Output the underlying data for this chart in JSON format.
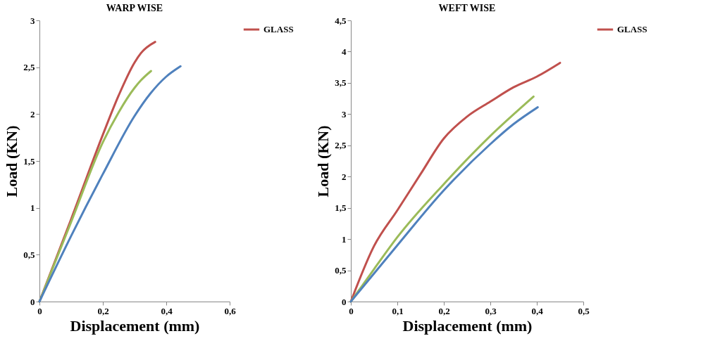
{
  "chart_data": [
    {
      "type": "line",
      "title": "WARP WISE",
      "xlabel": "Displacement (mm)",
      "ylabel": "Load (KN)",
      "legend": "right",
      "grid": false,
      "line_style": "solid",
      "marker": "none",
      "xlim": [
        0,
        0.6
      ],
      "xticks": [
        0,
        {
          "value": 0.2,
          "label": "0,2"
        },
        {
          "value": 0.4,
          "label": "0,4"
        },
        {
          "value": 0.6,
          "label": "0,6"
        }
      ],
      "ylim": [
        0,
        3
      ],
      "yticks": [
        0,
        {
          "value": 0.5,
          "label": "0,5"
        },
        1,
        {
          "value": 1.5,
          "label": "1,5"
        },
        2,
        {
          "value": 2.5,
          "label": "2,5"
        },
        3
      ],
      "series": [
        {
          "name": "GLASS",
          "color": "#c0504d",
          "x": [
            0,
            0.1,
            0.2,
            0.25,
            0.3,
            0.32,
            0.365
          ],
          "values": [
            0,
            0.88,
            1.78,
            2.2,
            2.55,
            2.65,
            2.77
          ]
        },
        {
          "color": "#9bbb59",
          "x": [
            0,
            0.1,
            0.2,
            0.25,
            0.3,
            0.32,
            0.352
          ],
          "values": [
            0,
            0.85,
            1.7,
            2.02,
            2.28,
            2.36,
            2.46
          ]
        },
        {
          "color": "#4f81bd",
          "x": [
            0,
            0.1,
            0.2,
            0.3,
            0.35,
            0.4,
            0.445
          ],
          "values": [
            0,
            0.7,
            1.36,
            1.98,
            2.22,
            2.4,
            2.51
          ]
        }
      ]
    },
    {
      "type": "line",
      "title": "WEFT WISE",
      "xlabel": "Displacement  (mm)",
      "ylabel": "Load (KN)",
      "legend": "right",
      "grid": false,
      "line_style": "solid",
      "marker": "none",
      "xlim": [
        0,
        0.5
      ],
      "xticks": [
        0,
        {
          "value": 0.1,
          "label": "0,1"
        },
        {
          "value": 0.2,
          "label": "0,2"
        },
        {
          "value": 0.3,
          "label": "0,3"
        },
        {
          "value": 0.4,
          "label": "0,4"
        },
        {
          "value": 0.5,
          "label": "0,5"
        }
      ],
      "ylim": [
        0,
        4.5
      ],
      "yticks": [
        0,
        {
          "value": 0.5,
          "label": "0,5"
        },
        1,
        {
          "value": 1.5,
          "label": "1,5"
        },
        2,
        {
          "value": 2.5,
          "label": "2,5"
        },
        3,
        {
          "value": 3.5,
          "label": "3,5"
        },
        4,
        {
          "value": 4.5,
          "label": "4,5"
        }
      ],
      "series": [
        {
          "name": "GLASS",
          "color": "#c0504d",
          "x": [
            0,
            0.05,
            0.1,
            0.15,
            0.2,
            0.25,
            0.3,
            0.35,
            0.4,
            0.45
          ],
          "values": [
            0,
            0.89,
            1.46,
            2.04,
            2.61,
            2.96,
            3.2,
            3.43,
            3.6,
            3.82
          ]
        },
        {
          "color": "#9bbb59",
          "x": [
            0,
            0.05,
            0.1,
            0.2,
            0.3,
            0.393
          ],
          "values": [
            0,
            0.52,
            1.03,
            1.88,
            2.65,
            3.28
          ]
        },
        {
          "color": "#4f81bd",
          "x": [
            0,
            0.1,
            0.2,
            0.3,
            0.35,
            0.402
          ],
          "values": [
            0,
            0.9,
            1.78,
            2.52,
            2.84,
            3.11
          ]
        }
      ]
    }
  ]
}
